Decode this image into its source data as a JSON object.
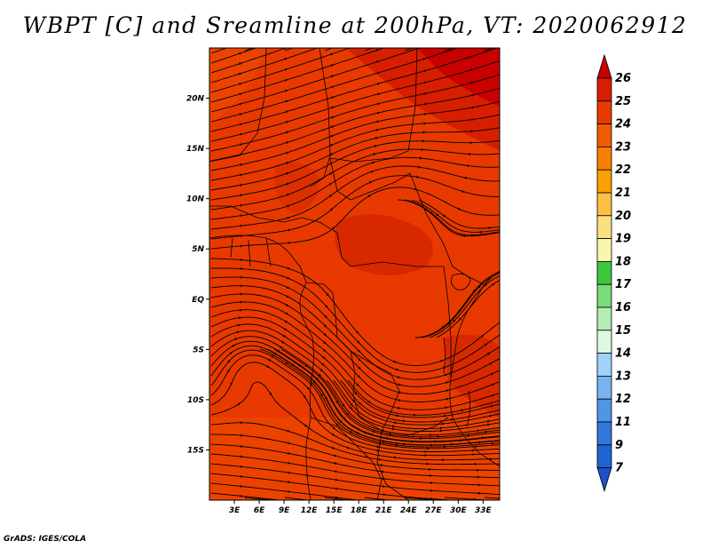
{
  "title": "WBPT [C] and Sreamline at 200hPa, VT: 2020062912",
  "footer": "GrADS: IGES/COLA",
  "map": {
    "lon_range": [
      0,
      35
    ],
    "lat_range": [
      -20,
      25
    ],
    "lon_ticks": [
      "3E",
      "6E",
      "9E",
      "12E",
      "15E",
      "18E",
      "21E",
      "24E",
      "27E",
      "30E",
      "33E"
    ],
    "lat_ticks": [
      "20N",
      "15N",
      "10N",
      "5N",
      "EQ",
      "5S",
      "10S",
      "15S"
    ],
    "field": "wet-bulb potential temperature at 200hPa",
    "dominant_range_C": [
      23,
      26
    ]
  },
  "colorbar": {
    "labels": [
      "26",
      "25",
      "24",
      "23",
      "22",
      "21",
      "20",
      "19",
      "18",
      "17",
      "16",
      "15",
      "14",
      "13",
      "12",
      "11",
      "9",
      "7"
    ],
    "colors": [
      "#c80000",
      "#d81e00",
      "#e83a00",
      "#f05a00",
      "#f88000",
      "#fca000",
      "#fcc040",
      "#fce080",
      "#fcf5b0",
      "#3cc83c",
      "#78dc78",
      "#b4ecb4",
      "#e0f8e0",
      "#a0d2fa",
      "#78b4f0",
      "#5096e6",
      "#3278dc",
      "#1e64d2",
      "#1e50c8"
    ]
  }
}
